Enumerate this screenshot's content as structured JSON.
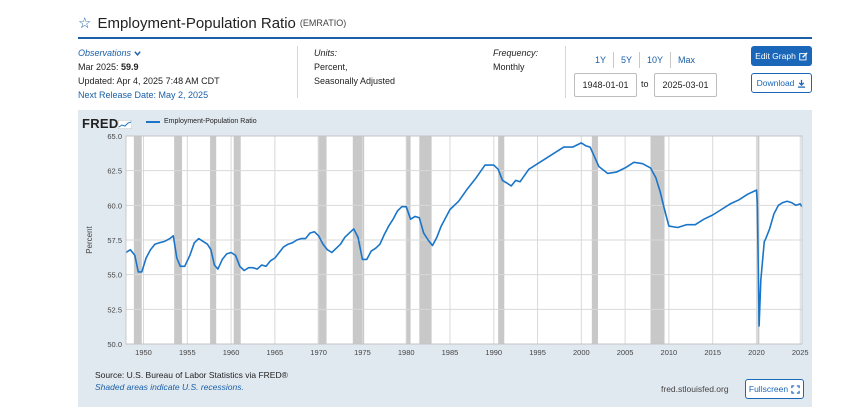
{
  "header": {
    "title": "Employment-Population Ratio",
    "series_id": "(EMRATIO)"
  },
  "observations": {
    "label": "Observations",
    "latest_period": "Mar 2025:",
    "latest_value": "59.9",
    "updated": "Updated: Apr 4, 2025 7:48 AM CDT",
    "next_release": "Next Release Date: May 2, 2025"
  },
  "units": {
    "label": "Units:",
    "line1": "Percent,",
    "line2": "Seasonally Adjusted"
  },
  "frequency": {
    "label": "Frequency:",
    "value": "Monthly"
  },
  "range_buttons": [
    "1Y",
    "5Y",
    "10Y",
    "Max"
  ],
  "date_range": {
    "start": "1948-01-01",
    "to_label": "to",
    "end": "2025-03-01"
  },
  "buttons": {
    "edit_graph": "Edit Graph",
    "download": "Download",
    "fullscreen": "Fullscreen"
  },
  "footer": {
    "source": "Source: U.S. Bureau of Labor Statistics via FRED®",
    "shaded_note": "Shaded areas indicate U.S. recessions.",
    "site": "fred.stlouisfed.org",
    "logo_text": "FRED"
  },
  "colors": {
    "accent": "#1a66b8",
    "line": "#1a75c8",
    "panel_bg": "#e1e9f0",
    "recession": "#c8c8c8"
  },
  "icons": {
    "title": "star-icon",
    "observations": "chevron-down-icon",
    "edit_graph": "edit-icon",
    "download": "download-icon",
    "fullscreen": "fullscreen-icon"
  },
  "chart_data": {
    "type": "line",
    "ylabel": "Percent",
    "legend": "Employment-Population Ratio",
    "xlim": [
      1948.0,
      2025.2
    ],
    "ylim": [
      50.0,
      65.0
    ],
    "yticks": [
      "50.0",
      "52.5",
      "55.0",
      "57.5",
      "60.0",
      "62.5",
      "65.0"
    ],
    "xticks": [
      "1950",
      "1955",
      "1960",
      "1965",
      "1970",
      "1975",
      "1980",
      "1985",
      "1990",
      "1995",
      "2000",
      "2005",
      "2010",
      "2015",
      "2020",
      "2025"
    ],
    "grid": true,
    "recessions": [
      [
        1948.9,
        1949.8
      ],
      [
        1953.5,
        1954.4
      ],
      [
        1957.6,
        1958.3
      ],
      [
        1960.3,
        1961.1
      ],
      [
        1969.9,
        1970.9
      ],
      [
        1973.9,
        1975.2
      ],
      [
        1980.0,
        1980.5
      ],
      [
        1981.5,
        1982.9
      ],
      [
        1990.5,
        1991.2
      ],
      [
        2001.2,
        2001.9
      ],
      [
        2007.9,
        2009.5
      ],
      [
        2020.1,
        2020.3
      ]
    ],
    "series": [
      {
        "name": "Employment-Population Ratio",
        "x": [
          1948.0,
          1948.5,
          1949.0,
          1949.4,
          1949.8,
          1950.3,
          1950.8,
          1951.3,
          1951.8,
          1952.4,
          1953.0,
          1953.4,
          1953.8,
          1954.2,
          1954.7,
          1955.3,
          1955.8,
          1956.3,
          1956.8,
          1957.3,
          1957.7,
          1958.1,
          1958.5,
          1959.0,
          1959.5,
          1960.0,
          1960.5,
          1961.0,
          1961.5,
          1962.0,
          1962.5,
          1963.0,
          1963.5,
          1964.0,
          1964.5,
          1965.0,
          1965.5,
          1966.0,
          1966.5,
          1967.0,
          1967.5,
          1968.0,
          1968.5,
          1969.0,
          1969.5,
          1970.0,
          1970.5,
          1971.0,
          1971.5,
          1972.0,
          1972.5,
          1973.0,
          1973.5,
          1974.0,
          1974.5,
          1975.0,
          1975.5,
          1976.0,
          1976.5,
          1977.0,
          1977.5,
          1978.0,
          1978.5,
          1979.0,
          1979.5,
          1980.0,
          1980.5,
          1981.0,
          1981.5,
          1982.0,
          1982.5,
          1983.0,
          1983.5,
          1984.0,
          1985.0,
          1986.0,
          1987.0,
          1988.0,
          1989.0,
          1990.0,
          1990.5,
          1991.0,
          1991.5,
          1992.0,
          1992.5,
          1993.0,
          1994.0,
          1995.0,
          1996.0,
          1997.0,
          1998.0,
          1999.0,
          2000.0,
          2000.5,
          2001.0,
          2001.5,
          2002.0,
          2003.0,
          2004.0,
          2005.0,
          2006.0,
          2007.0,
          2007.9,
          2008.5,
          2009.0,
          2009.5,
          2010.0,
          2011.0,
          2012.0,
          2013.0,
          2014.0,
          2015.0,
          2016.0,
          2017.0,
          2018.0,
          2019.0,
          2020.0,
          2020.1,
          2020.3,
          2020.5,
          2020.9,
          2021.0,
          2021.5,
          2022.0,
          2022.5,
          2023.0,
          2023.5,
          2024.0,
          2024.5,
          2025.0,
          2025.2
        ],
        "values": [
          56.6,
          56.8,
          56.4,
          55.2,
          55.2,
          56.2,
          56.8,
          57.2,
          57.3,
          57.4,
          57.6,
          57.8,
          56.2,
          55.6,
          55.6,
          56.4,
          57.3,
          57.6,
          57.4,
          57.2,
          56.8,
          55.7,
          55.4,
          56.1,
          56.5,
          56.6,
          56.4,
          55.6,
          55.3,
          55.5,
          55.5,
          55.4,
          55.7,
          55.6,
          56.0,
          56.2,
          56.6,
          57.0,
          57.2,
          57.3,
          57.5,
          57.6,
          57.6,
          58.0,
          58.1,
          57.8,
          57.2,
          56.8,
          56.6,
          56.9,
          57.2,
          57.7,
          58.0,
          58.3,
          57.7,
          56.1,
          56.1,
          56.7,
          56.9,
          57.2,
          57.9,
          58.5,
          59.0,
          59.6,
          59.9,
          59.9,
          59.0,
          59.2,
          59.1,
          58.0,
          57.5,
          57.1,
          57.7,
          58.5,
          59.7,
          60.3,
          61.2,
          62.0,
          62.9,
          62.9,
          62.6,
          61.8,
          61.6,
          61.4,
          61.8,
          61.7,
          62.6,
          63.0,
          63.4,
          63.8,
          64.2,
          64.2,
          64.5,
          64.3,
          64.2,
          63.5,
          62.8,
          62.3,
          62.4,
          62.7,
          63.1,
          63.0,
          62.7,
          62.0,
          61.0,
          59.7,
          58.5,
          58.4,
          58.6,
          58.6,
          59.0,
          59.3,
          59.7,
          60.1,
          60.4,
          60.8,
          61.1,
          60.2,
          51.3,
          54.6,
          57.4,
          57.5,
          58.3,
          59.4,
          60.0,
          60.2,
          60.3,
          60.2,
          60.0,
          60.1,
          59.9
        ]
      }
    ]
  }
}
